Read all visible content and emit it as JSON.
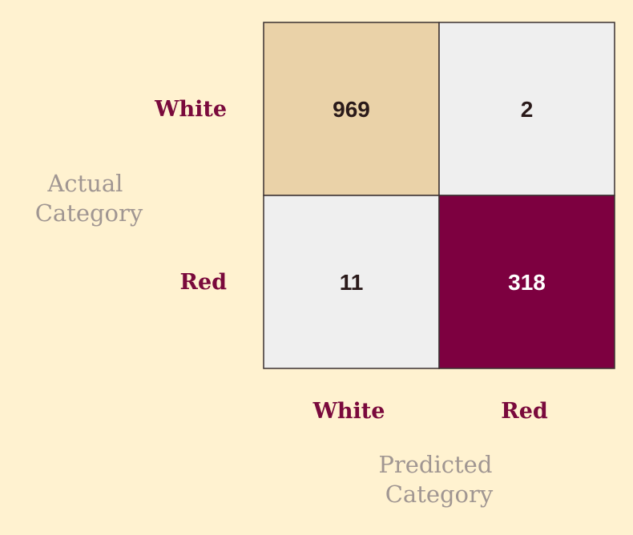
{
  "chart_data": {
    "type": "heatmap",
    "title": "",
    "row_categories": [
      "White",
      "Red"
    ],
    "col_categories": [
      "White",
      "Red"
    ],
    "ylabel": [
      "Actual",
      "Category"
    ],
    "xlabel": [
      "Predicted",
      "Category"
    ],
    "values": [
      [
        969,
        2
      ],
      [
        11,
        318
      ]
    ],
    "cell_colors": [
      [
        "#ead2a8",
        "#efefef"
      ],
      [
        "#efefef",
        "#7d0040"
      ]
    ],
    "text_colors": [
      [
        "#2a1a1a",
        "#2a1a1a"
      ],
      [
        "#2a1a1a",
        "#ffffff"
      ]
    ],
    "grid_line_color": "#3a3030",
    "label_color": "#7a0a3c",
    "axis_title_color": "#a09692"
  }
}
